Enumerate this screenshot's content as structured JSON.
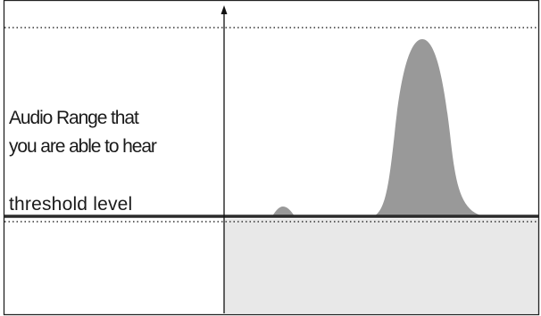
{
  "diagram": {
    "labels": {
      "audio_range_line1": "Audio Range that",
      "audio_range_line2": "you are able to hear",
      "threshold": "threshold level"
    },
    "colors": {
      "frame": "#222222",
      "threshold_line": "#2b2b2b",
      "dotted_line": "#333333",
      "below_threshold_fill": "#e8e8e8",
      "peak_fill": "#999999",
      "axis": "#111111"
    },
    "shapes": {
      "small_peak": "small bump at threshold level",
      "large_peak": "tall bell-shaped peak above threshold"
    }
  }
}
